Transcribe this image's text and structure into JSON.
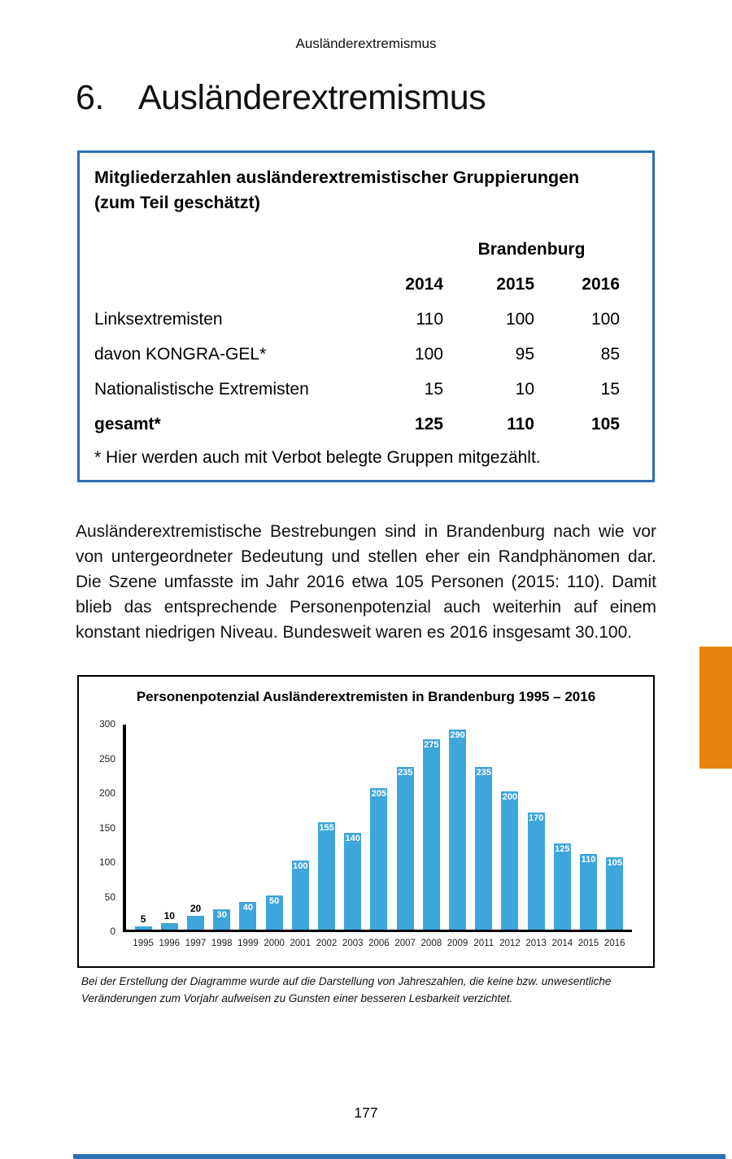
{
  "page": {
    "running_header": "Ausländerextremismus",
    "heading_number": "6.",
    "heading_title": "Ausländerextremismus",
    "page_number": "177"
  },
  "table_box": {
    "title_line1": "Mitgliederzahlen ausländerextremistischer Gruppierungen",
    "title_line2": "(zum Teil geschätzt)",
    "region_header": "Brandenburg",
    "year_headers": [
      "2014",
      "2015",
      "2016"
    ],
    "rows": [
      {
        "label": "Linksextremisten",
        "values": [
          "110",
          "100",
          "100"
        ]
      },
      {
        "label": "davon KONGRA-GEL*",
        "values": [
          "100",
          "95",
          "85"
        ]
      },
      {
        "label": "Nationalistische Extremisten",
        "values": [
          "15",
          "10",
          "15"
        ]
      },
      {
        "label": "gesamt*",
        "values": [
          "125",
          "110",
          "105"
        ]
      }
    ],
    "footnote": "* Hier werden auch mit Verbot belegte Gruppen mitgezählt.",
    "border_color": "#2a70b4"
  },
  "body_paragraph": "Ausländerextremistische Bestrebungen sind in Brandenburg nach wie vor von untergeordneter Bedeutung und stellen eher ein Randphänomen dar. Die Szene umfasste im Jahr 2016 etwa 105 Personen (2015: 110). Damit blieb das entsprechende Personenpotenzial auch weiterhin auf einem konstant niedrigen Niveau. Bundesweit waren es 2016 insgesamt 30.100.",
  "chart_data": {
    "type": "bar",
    "title": "Personenpotenzial Ausländerextremisten in Brandenburg 1995 – 2016",
    "categories": [
      "1995",
      "1996",
      "1997",
      "1998",
      "1999",
      "2000",
      "2001",
      "2002",
      "2003",
      "2006",
      "2007",
      "2008",
      "2009",
      "2011",
      "2012",
      "2013",
      "2014",
      "2015",
      "2016"
    ],
    "values": [
      5,
      10,
      20,
      30,
      40,
      50,
      100,
      155,
      140,
      205,
      235,
      275,
      290,
      235,
      200,
      170,
      125,
      110,
      105
    ],
    "xlabel": "",
    "ylabel": "",
    "ylim": [
      0,
      300
    ],
    "yticks": [
      300,
      250,
      200,
      150,
      100,
      50,
      0
    ],
    "grid": false,
    "legend": null,
    "bar_color": "#3fa6db",
    "value_label_inside_threshold": 30
  },
  "chart_footnote": "Bei der Erstellung der Diagramme wurde auf die Darstellung von Jahreszahlen, die keine bzw. unwesentliche Veränderungen zum Vorjahr aufweisen zu Gunsten einer besseren Lesbarkeit verzichtet.",
  "decor": {
    "orange_tab_color": "#e8830d",
    "bottom_bar_color": "#2a70b4"
  }
}
